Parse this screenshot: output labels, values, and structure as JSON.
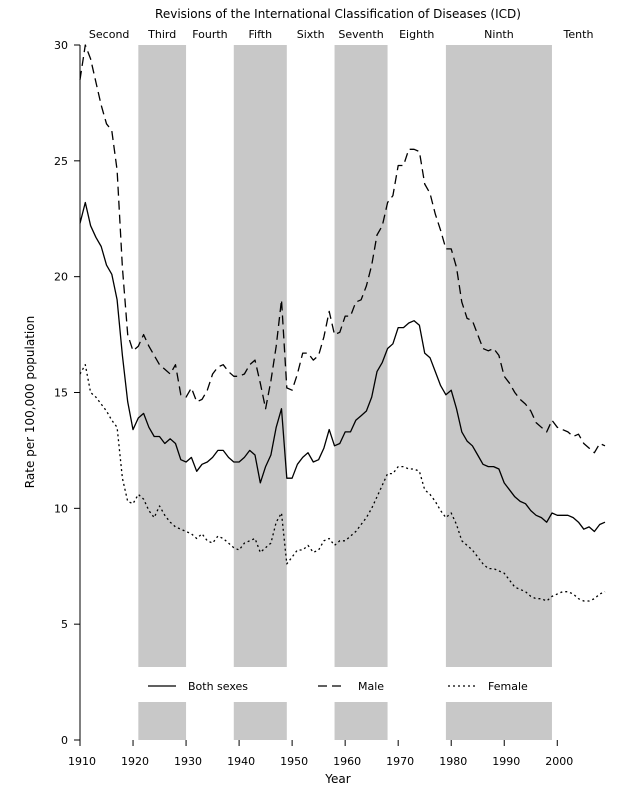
{
  "chart_data": {
    "type": "line",
    "title": "Revisions of the International Classification of Diseases (ICD)",
    "xlabel": "Year",
    "ylabel": "Rate per 100,000 population",
    "xlim": [
      1910,
      2009
    ],
    "ylim": [
      0,
      30
    ],
    "x_ticks": [
      "1910",
      "1920",
      "1930",
      "1940",
      "1950",
      "1960",
      "1970",
      "1980",
      "1990",
      "2000"
    ],
    "y_ticks": [
      "0",
      "5",
      "10",
      "15",
      "20",
      "25",
      "30"
    ],
    "grid": false,
    "legend_position": "bottom",
    "icd_revisions": [
      {
        "label": "Second",
        "start": 1910,
        "end": 1921,
        "shaded": false
      },
      {
        "label": "Third",
        "start": 1921,
        "end": 1930,
        "shaded": true
      },
      {
        "label": "Fourth",
        "start": 1930,
        "end": 1939,
        "shaded": false
      },
      {
        "label": "Fifth",
        "start": 1939,
        "end": 1949,
        "shaded": true
      },
      {
        "label": "Sixth",
        "start": 1949,
        "end": 1958,
        "shaded": false
      },
      {
        "label": "Seventh",
        "start": 1958,
        "end": 1968,
        "shaded": true
      },
      {
        "label": "Eighth",
        "start": 1968,
        "end": 1979,
        "shaded": false
      },
      {
        "label": "Ninth",
        "start": 1979,
        "end": 1999,
        "shaded": true
      },
      {
        "label": "Tenth",
        "start": 1999,
        "end": 2009,
        "shaded": false
      }
    ],
    "x": [
      1910,
      1911,
      1912,
      1913,
      1914,
      1915,
      1916,
      1917,
      1918,
      1919,
      1920,
      1921,
      1922,
      1923,
      1924,
      1925,
      1926,
      1927,
      1928,
      1929,
      1930,
      1931,
      1932,
      1933,
      1934,
      1935,
      1936,
      1937,
      1938,
      1939,
      1940,
      1941,
      1942,
      1943,
      1944,
      1945,
      1946,
      1947,
      1948,
      1949,
      1950,
      1951,
      1952,
      1953,
      1954,
      1955,
      1956,
      1957,
      1958,
      1959,
      1960,
      1961,
      1962,
      1963,
      1964,
      1965,
      1966,
      1967,
      1968,
      1969,
      1970,
      1971,
      1972,
      1973,
      1974,
      1975,
      1976,
      1977,
      1978,
      1979,
      1980,
      1981,
      1982,
      1983,
      1984,
      1985,
      1986,
      1987,
      1988,
      1989,
      1990,
      1991,
      1992,
      1993,
      1994,
      1995,
      1996,
      1997,
      1998,
      1999,
      2000,
      2001,
      2002,
      2003,
      2004,
      2005,
      2006,
      2007,
      2008,
      2009
    ],
    "series": [
      {
        "name": "Both sexes",
        "style": "solid",
        "values": [
          22.3,
          23.2,
          22.2,
          21.7,
          21.3,
          20.5,
          20.1,
          19.0,
          16.6,
          14.6,
          13.4,
          13.9,
          14.1,
          13.5,
          13.1,
          13.1,
          12.8,
          13.0,
          12.8,
          12.1,
          12.0,
          12.2,
          11.6,
          11.9,
          12.0,
          12.2,
          12.5,
          12.5,
          12.2,
          12.0,
          12.0,
          12.2,
          12.5,
          12.3,
          11.1,
          11.8,
          12.3,
          13.5,
          14.3,
          11.3,
          11.3,
          11.9,
          12.2,
          12.4,
          12.0,
          12.1,
          12.6,
          13.4,
          12.7,
          12.8,
          13.3,
          13.3,
          13.8,
          14.0,
          14.2,
          14.8,
          15.9,
          16.3,
          16.9,
          17.1,
          17.8,
          17.8,
          18.0,
          18.1,
          17.9,
          16.7,
          16.5,
          15.9,
          15.3,
          14.9,
          15.1,
          14.3,
          13.3,
          12.9,
          12.7,
          12.3,
          11.9,
          11.8,
          11.8,
          11.7,
          11.1,
          10.8,
          10.5,
          10.3,
          10.2,
          9.9,
          9.7,
          9.6,
          9.4,
          9.8,
          9.7,
          9.7,
          9.7,
          9.6,
          9.4,
          9.1,
          9.2,
          9.0,
          9.3,
          9.4
        ]
      },
      {
        "name": "Male",
        "style": "dashed",
        "values": [
          28.5,
          30.0,
          29.4,
          28.4,
          27.4,
          26.6,
          26.3,
          24.6,
          20.4,
          17.5,
          16.8,
          17.0,
          17.5,
          17.0,
          16.6,
          16.2,
          16.0,
          15.8,
          16.2,
          14.9,
          14.8,
          15.2,
          14.6,
          14.7,
          15.1,
          15.8,
          16.1,
          16.2,
          15.9,
          15.7,
          15.7,
          15.8,
          16.2,
          16.4,
          15.4,
          14.3,
          15.5,
          17.0,
          19.0,
          15.2,
          15.1,
          15.8,
          16.7,
          16.7,
          16.4,
          16.6,
          17.4,
          18.5,
          17.5,
          17.6,
          18.3,
          18.3,
          18.9,
          19.0,
          19.6,
          20.5,
          21.8,
          22.2,
          23.2,
          23.5,
          24.8,
          24.8,
          25.5,
          25.5,
          25.4,
          24.0,
          23.6,
          22.7,
          22.0,
          21.2,
          21.2,
          20.4,
          18.9,
          18.2,
          18.1,
          17.5,
          16.9,
          16.8,
          16.9,
          16.6,
          15.7,
          15.4,
          15.0,
          14.7,
          14.5,
          14.2,
          13.7,
          13.5,
          13.3,
          13.8,
          13.5,
          13.4,
          13.3,
          13.1,
          13.2,
          12.8,
          12.6,
          12.4,
          12.8,
          12.7
        ]
      },
      {
        "name": "Female",
        "style": "dotted",
        "values": [
          15.8,
          16.2,
          15.0,
          14.8,
          14.5,
          14.2,
          13.8,
          13.5,
          11.3,
          10.3,
          10.2,
          10.6,
          10.4,
          9.9,
          9.6,
          10.1,
          9.7,
          9.4,
          9.2,
          9.1,
          9.0,
          8.9,
          8.7,
          8.9,
          8.6,
          8.5,
          8.8,
          8.7,
          8.5,
          8.3,
          8.2,
          8.5,
          8.6,
          8.7,
          8.1,
          8.3,
          8.5,
          9.4,
          9.8,
          7.6,
          7.9,
          8.2,
          8.2,
          8.4,
          8.1,
          8.2,
          8.6,
          8.7,
          8.4,
          8.6,
          8.6,
          8.8,
          9.0,
          9.3,
          9.6,
          10.0,
          10.5,
          11.0,
          11.5,
          11.5,
          11.8,
          11.8,
          11.7,
          11.7,
          11.6,
          10.8,
          10.6,
          10.3,
          9.9,
          9.6,
          9.8,
          9.3,
          8.6,
          8.4,
          8.2,
          7.9,
          7.6,
          7.4,
          7.4,
          7.3,
          7.2,
          6.9,
          6.6,
          6.5,
          6.4,
          6.2,
          6.1,
          6.1,
          6.0,
          6.2,
          6.3,
          6.4,
          6.4,
          6.3,
          6.1,
          6.0,
          6.0,
          6.1,
          6.3,
          6.4
        ]
      }
    ]
  }
}
